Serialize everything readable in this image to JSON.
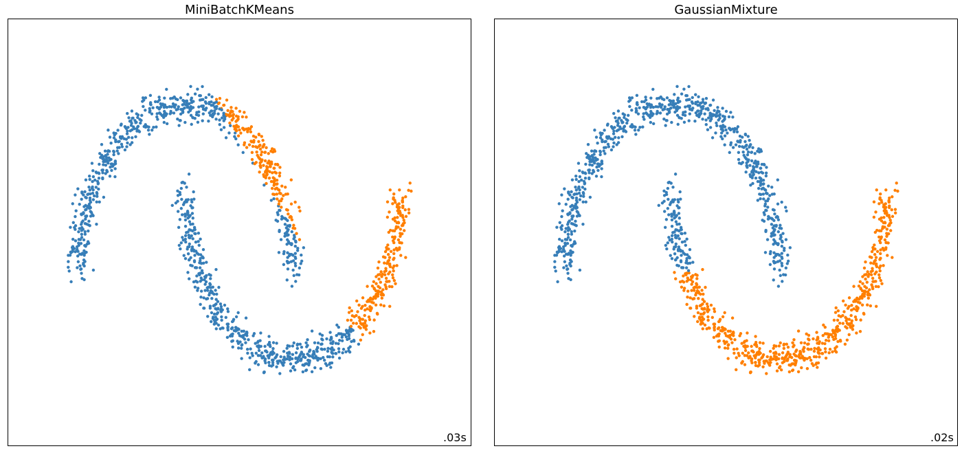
{
  "colors": {
    "cluster_blue": "#377eb8",
    "cluster_orange": "#ff7f00"
  },
  "chart_data": [
    {
      "type": "scatter",
      "title": "MiniBatchKMeans",
      "annotation": ".03s",
      "grid": false,
      "ticks": "none",
      "xlim": [
        -2.5,
        2.5
      ],
      "ylim": [
        -2.5,
        2.5
      ],
      "dataset": "two interleaved noisy half-moons (~1500 points)",
      "series": [
        {
          "color": "#377eb8",
          "assignment_rule": "points left of a diagonal boundary through the moons (upper-left half)"
        },
        {
          "color": "#ff7f00",
          "assignment_rule": "points right of the diagonal boundary (lower-right half)"
        }
      ]
    },
    {
      "type": "scatter",
      "title": "GaussianMixture",
      "annotation": ".02s",
      "grid": false,
      "ticks": "none",
      "xlim": [
        -2.5,
        2.5
      ],
      "ylim": [
        -2.5,
        2.5
      ],
      "dataset": "two interleaved noisy half-moons (~1500 points)",
      "series": [
        {
          "color": "#377eb8",
          "assignment_rule": "upper moon plus upper part of lower moon's left arm"
        },
        {
          "color": "#ff7f00",
          "assignment_rule": "lower moon bowl plus lower tip of upper moon's right arm"
        }
      ]
    }
  ]
}
